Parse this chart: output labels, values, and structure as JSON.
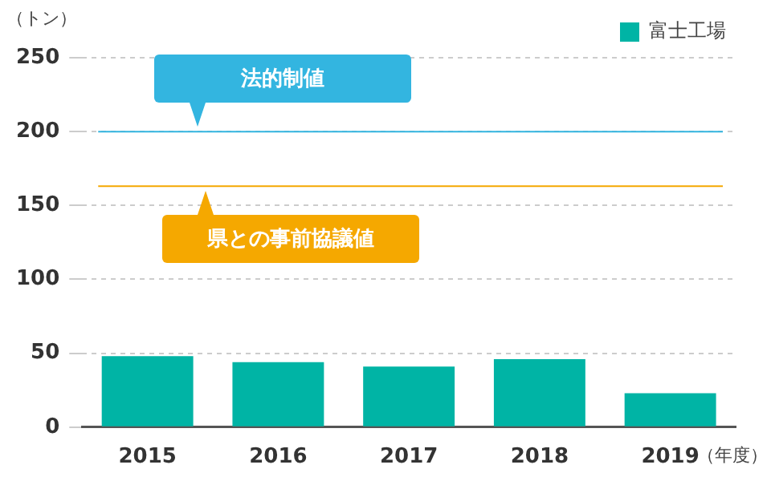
{
  "chart_data": {
    "type": "bar",
    "ylabel": "（トン）",
    "xlabel": "（年度）",
    "categories": [
      "2015",
      "2016",
      "2017",
      "2018",
      "2019"
    ],
    "series": [
      {
        "name": "富士工場",
        "color": "#00b4a5",
        "values": [
          48,
          44,
          41,
          46,
          23
        ]
      }
    ],
    "ylim": [
      0,
      250
    ],
    "yticks": [
      0,
      50,
      100,
      150,
      200,
      250
    ],
    "grid": "y",
    "legend": "top right",
    "ref_lines": [
      {
        "axis": "y",
        "value": 200,
        "label": "法的制値",
        "color": "#33b5e0"
      },
      {
        "axis": "y",
        "value": 163,
        "label": "県との事前協議値",
        "color": "#f5a800"
      }
    ]
  }
}
